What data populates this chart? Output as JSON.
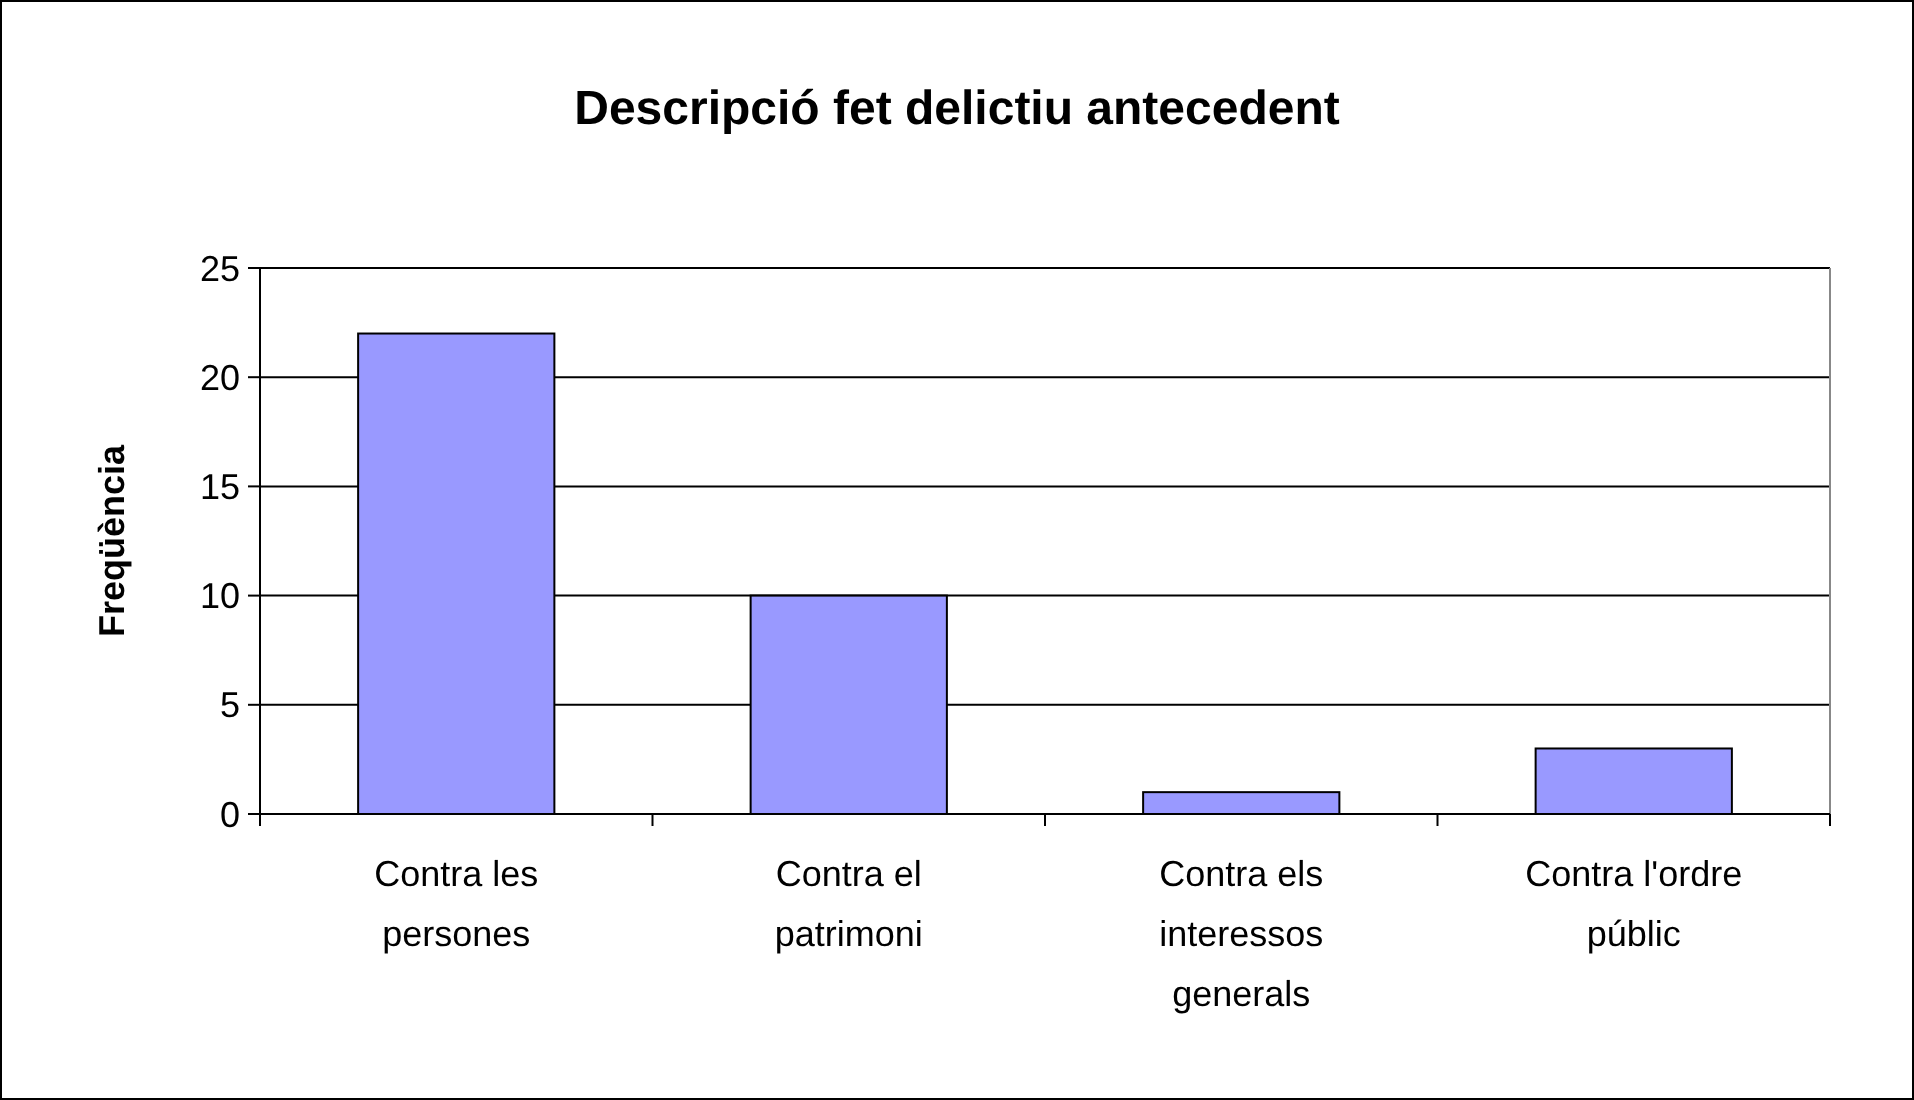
{
  "chart_data": {
    "type": "bar",
    "title": "Descripció fet delictiu antecedent",
    "ylabel": "Freqüència",
    "categories": [
      "Contra les persones",
      "Contra el patrimoni",
      "Contra els interessos generals",
      "Contra l'ordre públic"
    ],
    "values": [
      22,
      10,
      1,
      3
    ],
    "color": "#9999ff",
    "ylim": [
      0,
      25
    ],
    "yticks": [
      0,
      5,
      10,
      15,
      20,
      25
    ],
    "grid": "y"
  }
}
